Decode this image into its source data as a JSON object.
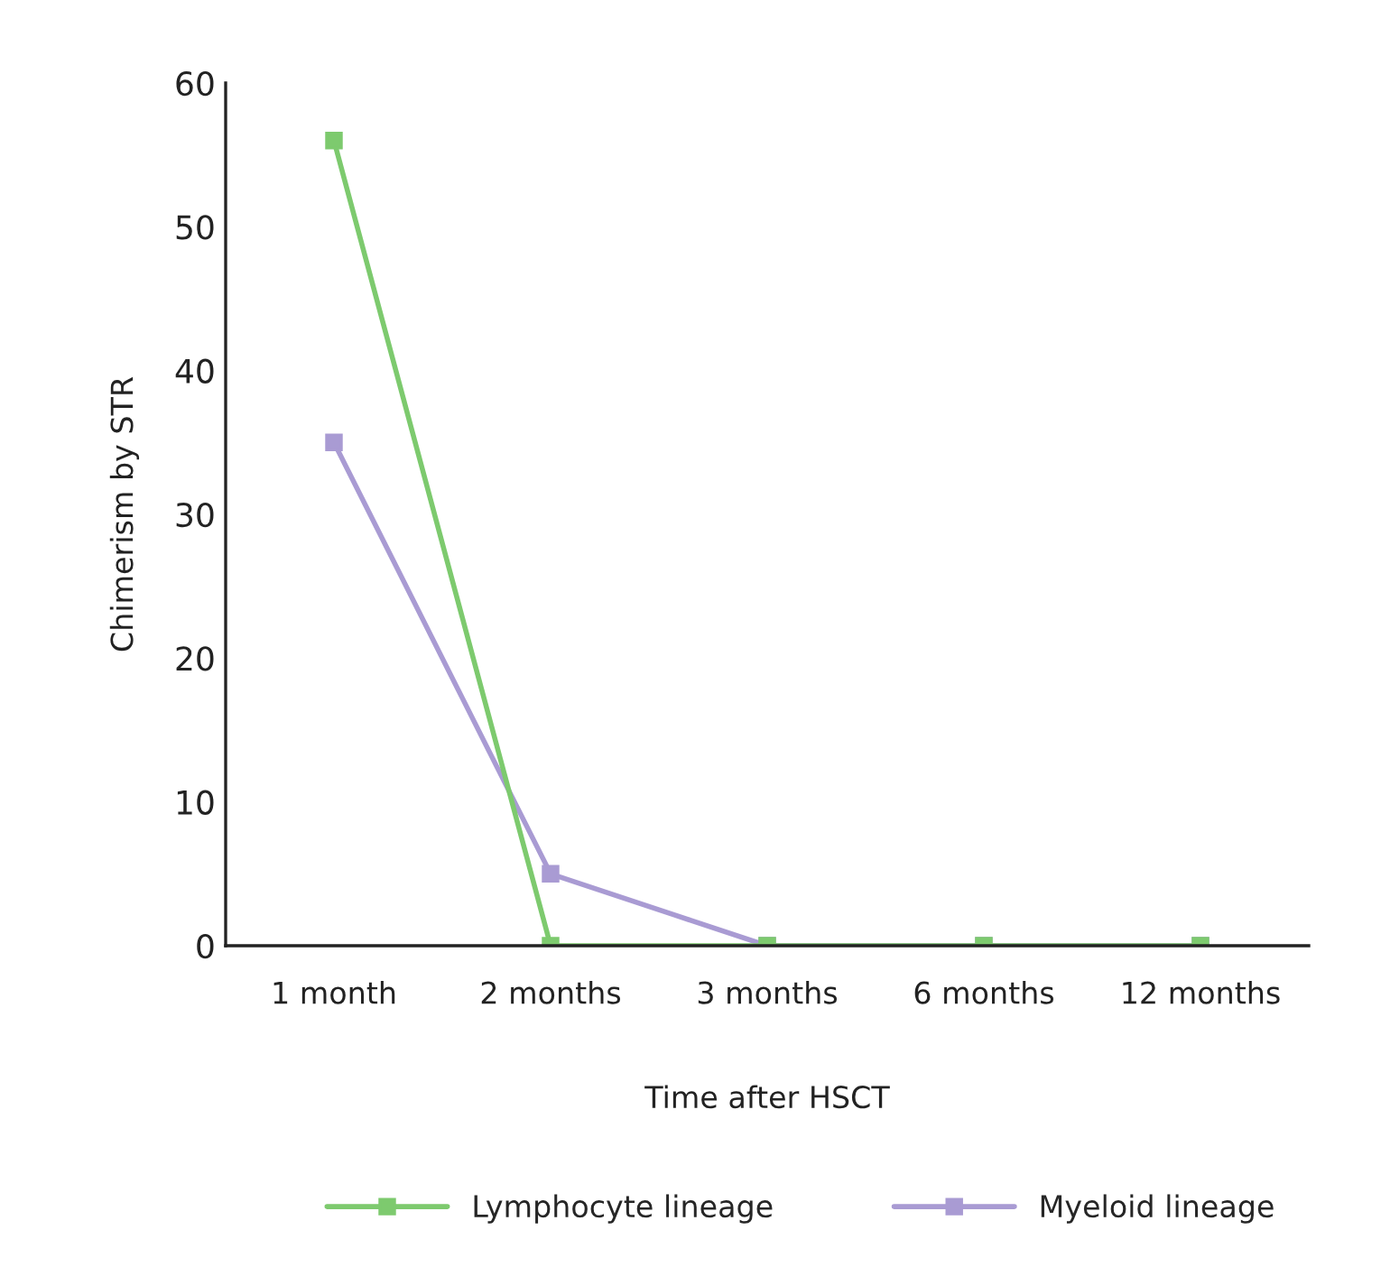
{
  "chart_data": {
    "type": "line",
    "xlabel": "Time after HSCT",
    "ylabel": "Chimerism by STR",
    "categories": [
      "1 month",
      "2 months",
      "3 months",
      "6 months",
      "12 months"
    ],
    "series": [
      {
        "name": "Myeloid lineage",
        "color": "#a99bd3",
        "values": [
          35,
          5,
          0,
          0,
          0
        ]
      },
      {
        "name": "Lymphocyte lineage",
        "color": "#7dca6e",
        "values": [
          56,
          0,
          0,
          0,
          0
        ]
      }
    ],
    "ylim": [
      0,
      60
    ],
    "yticks": [
      0,
      10,
      20,
      30,
      40,
      50,
      60
    ],
    "marker": "square",
    "line_style": "solid",
    "legend": "bottom",
    "grid": false
  }
}
